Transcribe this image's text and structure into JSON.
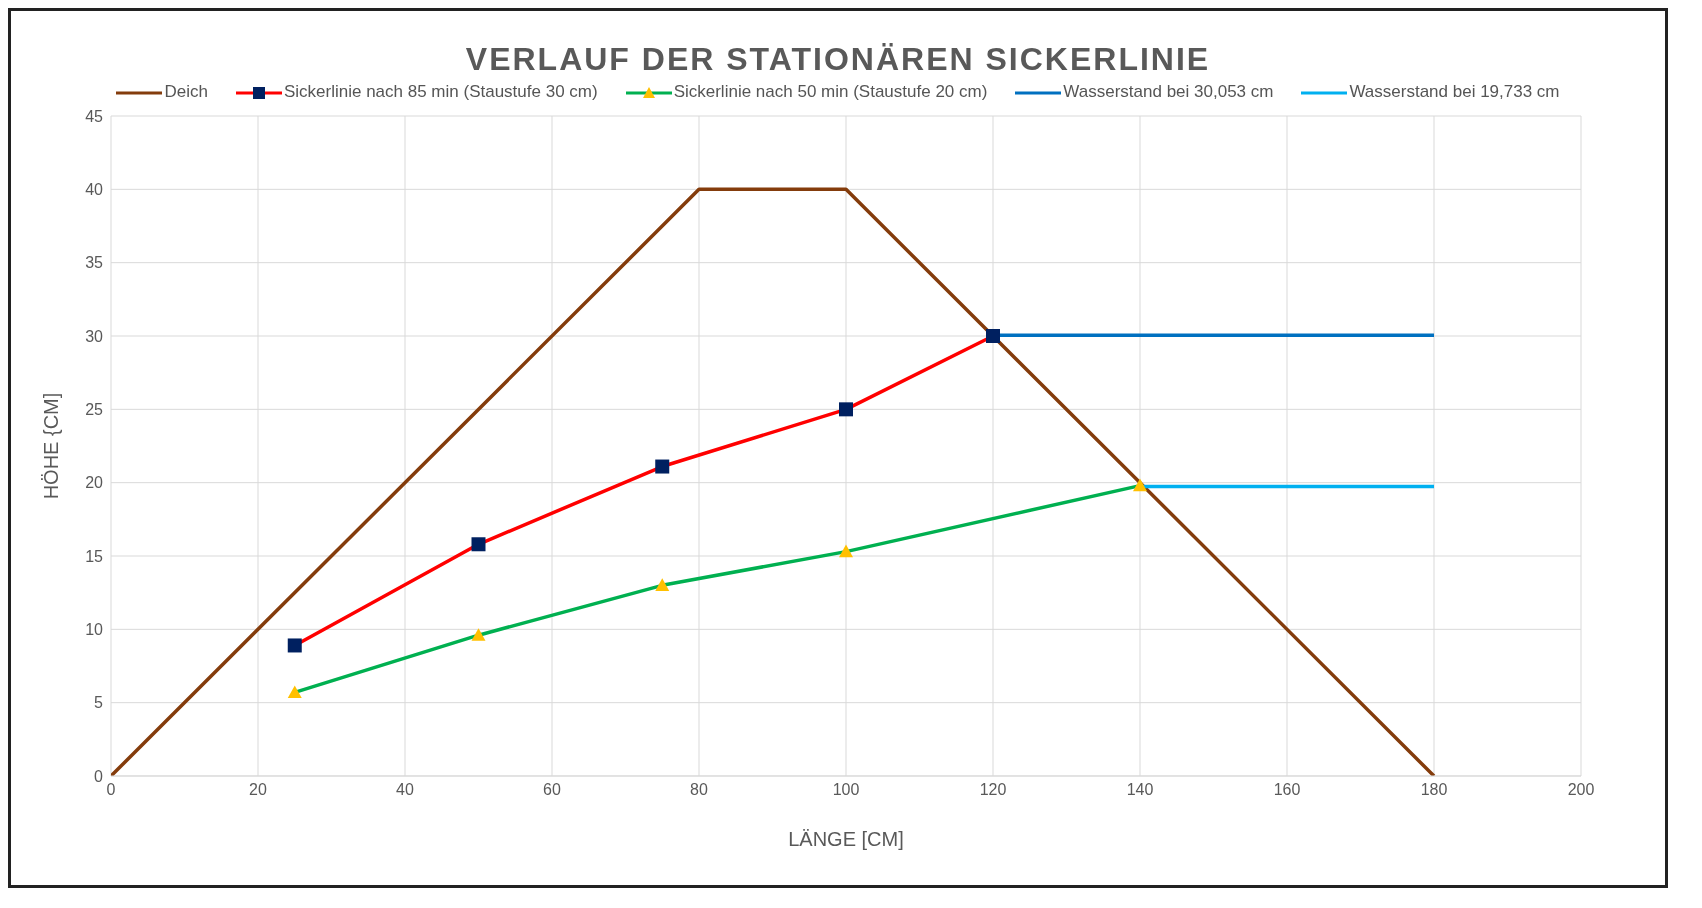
{
  "chart_data": {
    "type": "line",
    "title": "VERLAUF DER STATIONÄREN SICKERLINIE",
    "xlabel": "LÄNGE [CM]",
    "ylabel": "HÖHE {CM]",
    "xlim": [
      0,
      200
    ],
    "xticks": [
      0,
      20,
      40,
      60,
      80,
      100,
      120,
      140,
      160,
      180,
      200
    ],
    "ylim": [
      0,
      45
    ],
    "yticks": [
      0,
      5,
      10,
      15,
      20,
      25,
      30,
      35,
      40,
      45
    ],
    "grid": true,
    "legend": "top",
    "line_style": "solid",
    "series": [
      {
        "name": "Deich",
        "color": "#843c0c",
        "x": [
          0,
          80,
          100,
          180
        ],
        "values": [
          0,
          40,
          40,
          0
        ]
      },
      {
        "name": "Sickerlinie nach 85 min (Staustufe 30 cm)",
        "color": "#ff0000",
        "marker": "square",
        "colors": [
          "#002060",
          "#002060",
          "#002060",
          "#002060",
          "#002060"
        ],
        "x": [
          25,
          50,
          75,
          100,
          120
        ],
        "values": [
          8.9,
          15.8,
          21.1,
          25,
          30
        ]
      },
      {
        "name": "Sickerlinie nach 50 min (Staustufe 20 cm)",
        "color": "#00b050",
        "marker": "triangle",
        "colors": [
          "#ffc000",
          "#ffc000",
          "#ffc000",
          "#ffc000",
          "#ffc000"
        ],
        "x": [
          25,
          50,
          75,
          100,
          140
        ],
        "values": [
          5.7,
          9.6,
          13,
          15.3,
          19.8
        ]
      },
      {
        "name": "Wasserstand bei 30,053 cm",
        "color": "#0070c0",
        "x": [
          120,
          180
        ],
        "values": [
          30.053,
          30.053
        ]
      },
      {
        "name": "Wasserstand bei 19,733 cm",
        "color": "#00b0f0",
        "x": [
          140,
          180
        ],
        "values": [
          19.733,
          19.733
        ]
      }
    ]
  }
}
